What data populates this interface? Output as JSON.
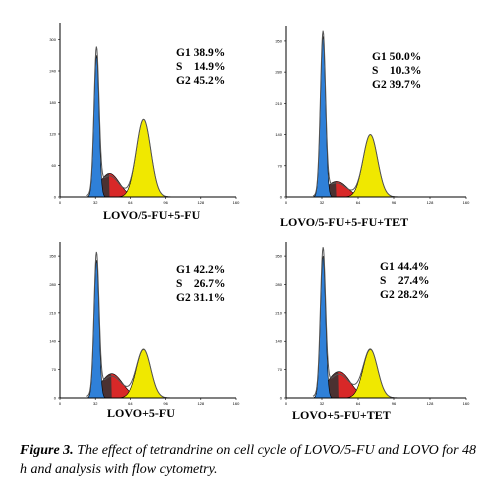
{
  "chart_data": [
    {
      "type": "area",
      "label": "LOVO/5-FU+5-FU",
      "stats": {
        "G1": "38.9%",
        "S": "14.9%",
        "G2": "45.2%"
      },
      "y_ticks": [
        "0",
        "60",
        "120",
        "180",
        "240",
        "300"
      ],
      "x_ticks": [
        "0",
        "32",
        "64",
        "96",
        "128",
        "160"
      ],
      "xlim": [
        0,
        160
      ],
      "ylim": [
        0,
        320
      ],
      "g1_peak": {
        "x": 33,
        "height": 270,
        "width": 2.3
      },
      "s_peak": {
        "x": 45,
        "height": 45,
        "width": 9
      },
      "g2_peak": {
        "x": 76,
        "height": 148,
        "width": 6.5
      }
    },
    {
      "type": "area",
      "label": "LOVO/5-FU+5-FU+TET",
      "stats": {
        "G1": "50.0%",
        "S": "10.3%",
        "G2": "39.7%"
      },
      "y_ticks": [
        "0",
        "70",
        "140",
        "210",
        "280",
        "350"
      ],
      "x_ticks": [
        "0",
        "32",
        "64",
        "96",
        "128",
        "160"
      ],
      "xlim": [
        0,
        160
      ],
      "ylim": [
        0,
        370
      ],
      "g1_peak": {
        "x": 33,
        "height": 360,
        "width": 2.3
      },
      "s_peak": {
        "x": 45,
        "height": 35,
        "width": 9
      },
      "g2_peak": {
        "x": 75,
        "height": 140,
        "width": 6.5
      }
    },
    {
      "type": "area",
      "label": "LOVO+5-FU",
      "stats": {
        "G1": "42.2%",
        "S": "26.7%",
        "G2": "31.1%"
      },
      "y_ticks": [
        "0",
        "70",
        "140",
        "210",
        "280",
        "350"
      ],
      "x_ticks": [
        "0",
        "32",
        "64",
        "96",
        "128",
        "160"
      ],
      "xlim": [
        0,
        160
      ],
      "ylim": [
        0,
        370
      ],
      "g1_peak": {
        "x": 33,
        "height": 340,
        "width": 2.3
      },
      "s_peak": {
        "x": 47,
        "height": 60,
        "width": 10
      },
      "g2_peak": {
        "x": 76,
        "height": 120,
        "width": 6.5
      }
    },
    {
      "type": "area",
      "label": "LOVO+5-FU+TET",
      "stats": {
        "G1": "44.4%",
        "S": "27.4%",
        "G2": "28.2%"
      },
      "y_ticks": [
        "0",
        "70",
        "140",
        "210",
        "280",
        "350"
      ],
      "x_ticks": [
        "0",
        "32",
        "64",
        "96",
        "128",
        "160"
      ],
      "xlim": [
        0,
        160
      ],
      "ylim": [
        0,
        370
      ],
      "g1_peak": {
        "x": 33,
        "height": 350,
        "width": 2.3
      },
      "s_peak": {
        "x": 47,
        "height": 65,
        "width": 10
      },
      "g2_peak": {
        "x": 75,
        "height": 120,
        "width": 6.5
      }
    }
  ],
  "caption": {
    "prefix": "Figure 3.",
    "text": " The effect of tetrandrine on cell cycle of LOVO/5-FU and LOVO for 48 h and analysis with flow cytometry."
  },
  "colors": {
    "g1": "#2f80d8",
    "s": "#d82828",
    "g2": "#f0e800",
    "tail": "#333333",
    "line": "#555555",
    "axis": "#000000"
  }
}
